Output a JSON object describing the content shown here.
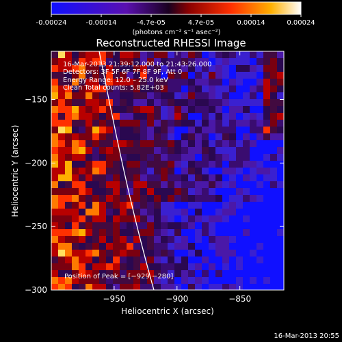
{
  "colorbar": {
    "ticks": [
      "-0.00024",
      "-0.00014",
      "-4.7e-05",
      "4.7e-05",
      "0.00014",
      "0.00024"
    ],
    "units": "(photons cm⁻² s⁻¹ asec⁻²)",
    "stops": [
      "#1010ff",
      "#5a10b0",
      "#2a0030",
      "#8a0000",
      "#ff3000",
      "#ffb000",
      "#ffffff"
    ]
  },
  "title": "Reconstructed RHESSI Image",
  "info": {
    "time_range": "16-Mar-2013 21:39:12.000 to 21:43:26.000",
    "detectors": "Detectors: 3F 5F 6F 7F 8F 9F, Att 0",
    "energy": "Energy Range: 12.0 – 25.0 keV",
    "method": "Clean    Total counts: 5.82E+03",
    "peak": "Position of Peak = [−929,−280]"
  },
  "axes": {
    "xlabel": "Heliocentric X (arcsec)",
    "ylabel": "Heliocentric Y (arcsec)",
    "xticks": [
      {
        "v": -950,
        "label": "−950"
      },
      {
        "v": -900,
        "label": "−900"
      },
      {
        "v": -850,
        "label": "−850"
      }
    ],
    "yticks": [
      {
        "v": -150,
        "label": "−150"
      },
      {
        "v": -200,
        "label": "−200"
      },
      {
        "v": -250,
        "label": "−250"
      },
      {
        "v": -300,
        "label": "−300"
      }
    ],
    "xlim": [
      -1000,
      -815
    ],
    "ylim": [
      -300,
      -112
    ]
  },
  "footer_timestamp": "16-Mar-2013 20:55"
}
